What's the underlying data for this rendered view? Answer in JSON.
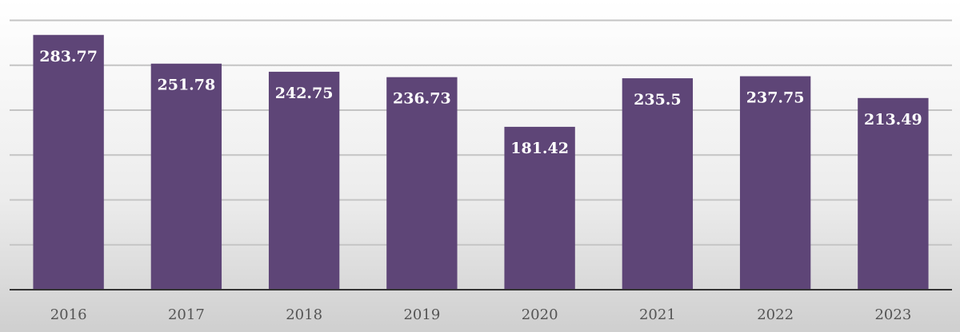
{
  "chart_data": {
    "type": "bar",
    "categories": [
      "2016",
      "2017",
      "2018",
      "2019",
      "2020",
      "2021",
      "2022",
      "2023"
    ],
    "values": [
      283.77,
      251.78,
      242.75,
      236.73,
      181.42,
      235.5,
      237.75,
      213.49
    ],
    "color": "#5e4577",
    "ylim": [
      0,
      320
    ],
    "yticks": [
      0,
      50,
      100,
      150,
      200,
      250,
      300
    ],
    "grid": true
  }
}
